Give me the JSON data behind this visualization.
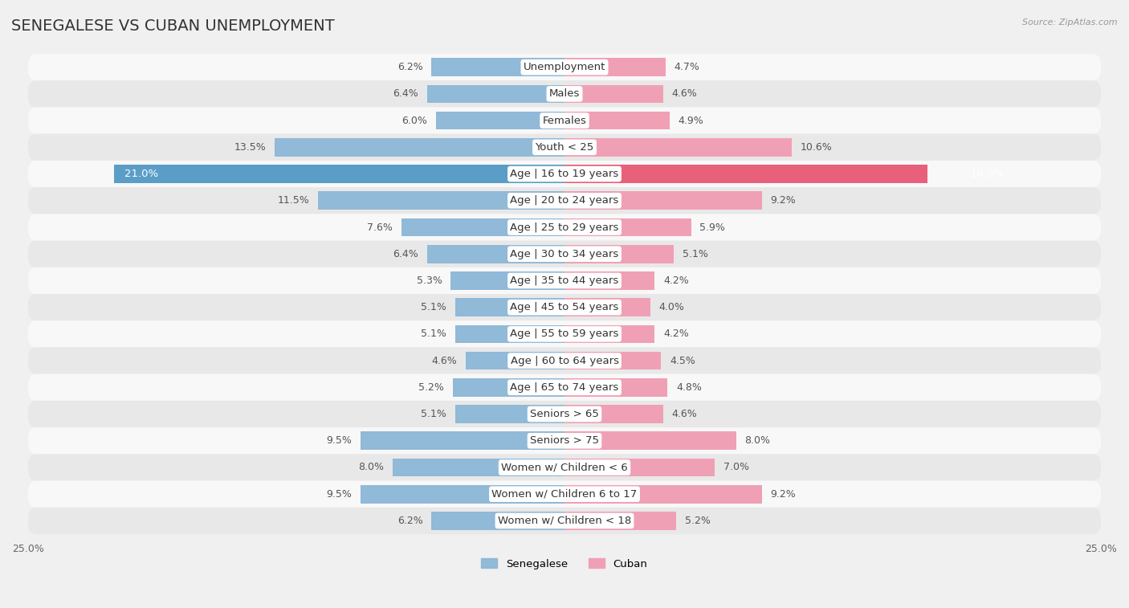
{
  "title": "SENEGALESE VS CUBAN UNEMPLOYMENT",
  "source": "Source: ZipAtlas.com",
  "categories": [
    "Unemployment",
    "Males",
    "Females",
    "Youth < 25",
    "Age | 16 to 19 years",
    "Age | 20 to 24 years",
    "Age | 25 to 29 years",
    "Age | 30 to 34 years",
    "Age | 35 to 44 years",
    "Age | 45 to 54 years",
    "Age | 55 to 59 years",
    "Age | 60 to 64 years",
    "Age | 65 to 74 years",
    "Seniors > 65",
    "Seniors > 75",
    "Women w/ Children < 6",
    "Women w/ Children 6 to 17",
    "Women w/ Children < 18"
  ],
  "senegalese": [
    6.2,
    6.4,
    6.0,
    13.5,
    21.0,
    11.5,
    7.6,
    6.4,
    5.3,
    5.1,
    5.1,
    4.6,
    5.2,
    5.1,
    9.5,
    8.0,
    9.5,
    6.2
  ],
  "cuban": [
    4.7,
    4.6,
    4.9,
    10.6,
    16.9,
    9.2,
    5.9,
    5.1,
    4.2,
    4.0,
    4.2,
    4.5,
    4.8,
    4.6,
    8.0,
    7.0,
    9.2,
    5.2
  ],
  "senegalese_color": "#91b9d8",
  "cuban_color": "#f0a0b5",
  "senegalese_highlight_color": "#5a9ec8",
  "cuban_highlight_color": "#e8607a",
  "highlight_row": 4,
  "xlim": 25.0,
  "bg_color": "#f0f0f0",
  "row_bg_light": "#f8f8f8",
  "row_bg_dark": "#e8e8e8",
  "label_fontsize": 9.5,
  "title_fontsize": 14,
  "value_fontsize": 9,
  "legend_labels": [
    "Senegalese",
    "Cuban"
  ]
}
